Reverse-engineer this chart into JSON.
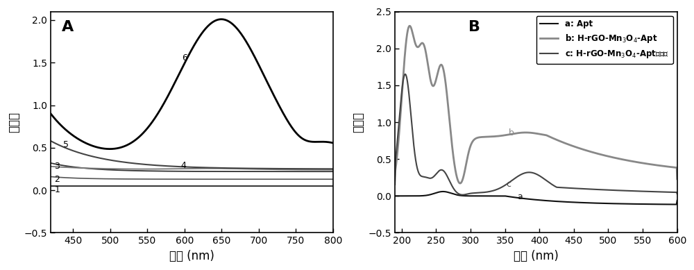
{
  "panel_A": {
    "title": "A",
    "xlabel": "波长 (nm)",
    "ylabel": "吸光度",
    "xlim": [
      420,
      800
    ],
    "ylim": [
      -0.5,
      2.1
    ],
    "yticks": [
      -0.5,
      0.0,
      0.5,
      1.0,
      1.5,
      2.0
    ],
    "xticks": [
      450,
      500,
      550,
      600,
      650,
      700,
      750,
      800
    ]
  },
  "panel_B": {
    "title": "B",
    "xlabel": "波长 (nm)",
    "ylabel": "吸光度",
    "xlim": [
      190,
      600
    ],
    "ylim": [
      -0.5,
      2.5
    ],
    "yticks": [
      -0.5,
      0.0,
      0.5,
      1.0,
      1.5,
      2.0,
      2.5
    ],
    "xticks": [
      200,
      250,
      300,
      350,
      400,
      450,
      500,
      550,
      600
    ]
  },
  "bg_color": "#ffffff"
}
